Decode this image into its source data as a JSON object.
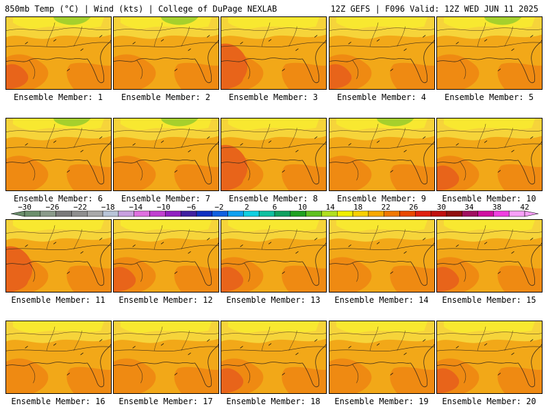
{
  "header": {
    "left": "850mb Temp (°C) | Wind (kts) | College of DuPage NEXLAB",
    "right": "12Z GEFS | F096 Valid: 12Z WED JUN 11 2025"
  },
  "panels": [
    {
      "label": "Ensemble Member: 1",
      "green": 1,
      "hot": 1,
      "yellow": 1
    },
    {
      "label": "Ensemble Member: 2",
      "green": 1,
      "hot": 0,
      "yellow": 1
    },
    {
      "label": "Ensemble Member: 3",
      "green": 0,
      "hot": 2,
      "yellow": 1
    },
    {
      "label": "Ensemble Member: 4",
      "green": 0,
      "hot": 1,
      "yellow": 1
    },
    {
      "label": "Ensemble Member: 5",
      "green": 1,
      "hot": 0,
      "yellow": 1
    },
    {
      "label": "Ensemble Member: 6",
      "green": 1,
      "hot": 0,
      "yellow": 1
    },
    {
      "label": "Ensemble Member: 7",
      "green": 1,
      "hot": 0,
      "yellow": 1
    },
    {
      "label": "Ensemble Member: 8",
      "green": 0,
      "hot": 2,
      "yellow": 1
    },
    {
      "label": "Ensemble Member: 9",
      "green": 1,
      "hot": 0,
      "yellow": 1
    },
    {
      "label": "Ensemble Member: 10",
      "green": 0,
      "hot": 1,
      "yellow": 1
    },
    {
      "label": "Ensemble Member: 11",
      "green": 0,
      "hot": 2,
      "yellow": 1
    },
    {
      "label": "Ensemble Member: 12",
      "green": 0,
      "hot": 1,
      "yellow": 1
    },
    {
      "label": "Ensemble Member: 13",
      "green": 0,
      "hot": 1,
      "yellow": 1
    },
    {
      "label": "Ensemble Member: 14",
      "green": 0,
      "hot": 0,
      "yellow": 1
    },
    {
      "label": "Ensemble Member: 15",
      "green": 0,
      "hot": 1,
      "yellow": 1
    },
    {
      "label": "Ensemble Member: 16",
      "green": 0,
      "hot": 0,
      "yellow": 1
    },
    {
      "label": "Ensemble Member: 17",
      "green": 0,
      "hot": 0,
      "yellow": 1
    },
    {
      "label": "Ensemble Member: 18",
      "green": 0,
      "hot": 1,
      "yellow": 1
    },
    {
      "label": "Ensemble Member: 19",
      "green": 0,
      "hot": 0,
      "yellow": 1
    },
    {
      "label": "Ensemble Member: 20",
      "green": 0,
      "hot": 1,
      "yellow": 1
    }
  ],
  "colorbar": {
    "ticks": [
      "−30",
      "−26",
      "−22",
      "−18",
      "−14",
      "−10",
      "−6",
      "−2",
      "2",
      "6",
      "10",
      "14",
      "18",
      "22",
      "26",
      "30",
      "34",
      "38",
      "42"
    ],
    "colors": [
      "#6c8f6c",
      "#8a9a8a",
      "#7a7a7a",
      "#8e8e8e",
      "#a9a9a9",
      "#b8c4d8",
      "#c8a0e0",
      "#e070e0",
      "#c040d0",
      "#9020c0",
      "#4020a0",
      "#1030c0",
      "#1060e0",
      "#10a0f0",
      "#10d0e0",
      "#10c0a0",
      "#10a060",
      "#20a020",
      "#60c020",
      "#b0e020",
      "#f0f000",
      "#f8d000",
      "#f8a800",
      "#f07800",
      "#e84800",
      "#e02010",
      "#c01010",
      "#901010",
      "#a01060",
      "#d010a0",
      "#f040e0",
      "#f8a0f8"
    ]
  },
  "map_colors": {
    "base": "#f2a818",
    "warm": "#ef8a12",
    "hot": "#e8641a",
    "yellow": "#f6d43a",
    "lightyellow": "#f8e830",
    "green": "#a6d02c",
    "line": "#3a2a1a"
  }
}
